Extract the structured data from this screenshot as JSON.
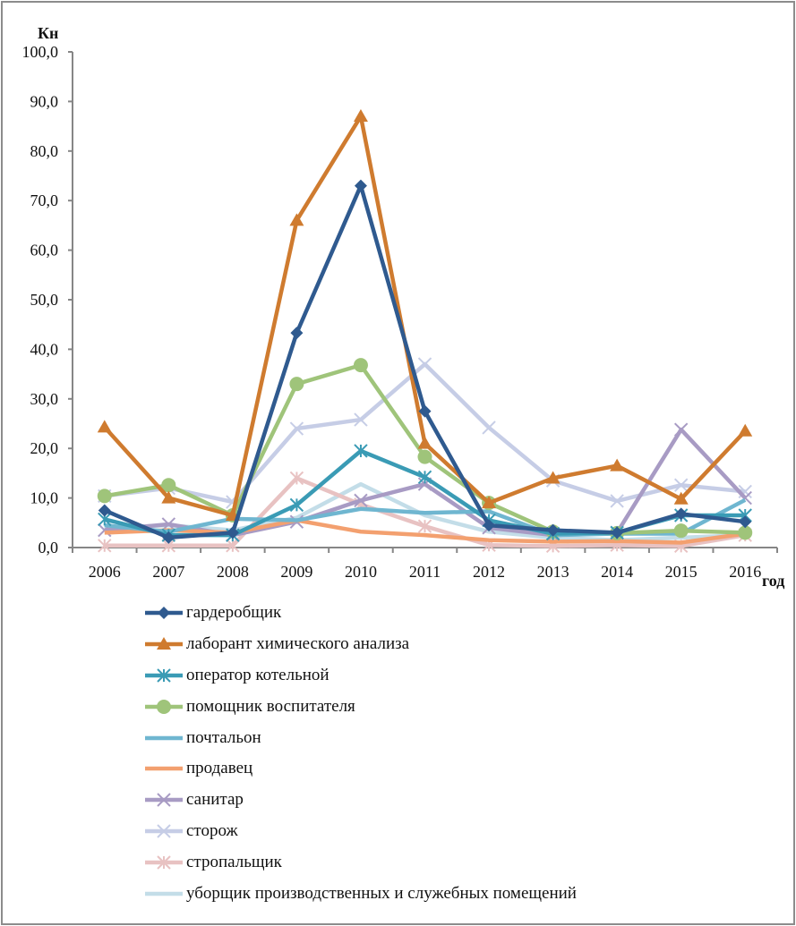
{
  "chart_data": {
    "type": "line",
    "title": "",
    "ylabel": "Кн",
    "xlabel": "год",
    "ylim": [
      0,
      100
    ],
    "ytick_step": 10,
    "ytick_labels": [
      "0,0",
      "10,0",
      "20,0",
      "30,0",
      "40,0",
      "50,0",
      "60,0",
      "70,0",
      "80,0",
      "90,0",
      "100,0"
    ],
    "grid": false,
    "legend_position": "bottom",
    "categories": [
      "2006",
      "2007",
      "2008",
      "2009",
      "2010",
      "2011",
      "2012",
      "2013",
      "2014",
      "2015",
      "2016"
    ],
    "series": [
      {
        "name": "гардеробщик",
        "color": "#2f5a8f",
        "marker": "diamond",
        "values": [
          7.5,
          2.0,
          3.0,
          43.3,
          73.0,
          27.5,
          4.5,
          3.5,
          3.0,
          6.8,
          5.2
        ]
      },
      {
        "name": "лаборант химического анализа",
        "color": "#cf7b2f",
        "marker": "triangle",
        "values": [
          24.3,
          10.0,
          6.5,
          66.0,
          87.0,
          21.0,
          9.0,
          14.0,
          16.5,
          9.8,
          23.5
        ]
      },
      {
        "name": "оператор котельной",
        "color": "#3a9bb5",
        "marker": "star",
        "values": [
          5.7,
          2.5,
          2.5,
          8.6,
          19.5,
          14.2,
          5.5,
          2.8,
          3.0,
          6.5,
          6.5
        ]
      },
      {
        "name": "помощник воспитателя",
        "color": "#9fc47a",
        "marker": "circle",
        "values": [
          10.4,
          12.6,
          6.5,
          33.0,
          36.8,
          18.3,
          9.0,
          3.2,
          2.9,
          3.4,
          3.0
        ]
      },
      {
        "name": "почтальон",
        "color": "#6fb6d0",
        "marker": "none",
        "values": [
          4.5,
          3.2,
          5.8,
          5.5,
          7.8,
          7.0,
          7.3,
          2.5,
          2.8,
          2.8,
          9.6
        ]
      },
      {
        "name": "продавец",
        "color": "#f3a06f",
        "marker": "none",
        "values": [
          3.0,
          3.5,
          3.0,
          5.5,
          3.2,
          2.5,
          1.5,
          1.2,
          1.3,
          1.0,
          2.8
        ]
      },
      {
        "name": "санитар",
        "color": "#a89bc4",
        "marker": "x",
        "values": [
          3.5,
          4.7,
          2.5,
          5.2,
          9.5,
          12.8,
          4.0,
          2.5,
          3.0,
          23.8,
          10.0
        ]
      },
      {
        "name": "сторож",
        "color": "#c6cde6",
        "marker": "x",
        "values": [
          10.4,
          12.0,
          9.2,
          24.0,
          25.8,
          37.0,
          24.2,
          13.5,
          9.4,
          12.6,
          11.3
        ]
      },
      {
        "name": "стропальщик",
        "color": "#e8c2c2",
        "marker": "star",
        "values": [
          0.4,
          0.4,
          0.4,
          14.0,
          8.7,
          4.3,
          0.5,
          0.3,
          0.5,
          0.3,
          2.5
        ]
      },
      {
        "name": "уборщик производственных и служебных помещений",
        "color": "#c3dde8",
        "marker": "none",
        "values": [
          4.0,
          4.5,
          3.5,
          6.0,
          12.8,
          6.5,
          3.2,
          2.0,
          1.5,
          2.0,
          2.5
        ]
      }
    ]
  }
}
